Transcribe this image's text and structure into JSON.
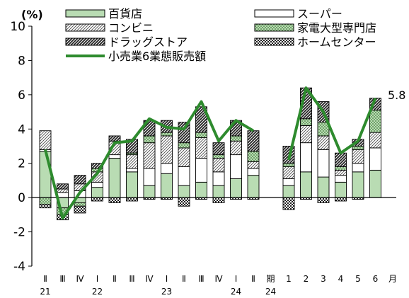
{
  "chart_data": {
    "type": "bar",
    "stacked": true,
    "unit_label": "(%)",
    "ylim": [
      -4,
      10
    ],
    "yticks": [
      10,
      8,
      6,
      4,
      2,
      0,
      -2,
      -4
    ],
    "x_tick_labels": [
      "Ⅱ",
      "Ⅲ",
      "Ⅳ",
      "Ⅰ",
      "Ⅱ",
      "Ⅲ",
      "Ⅳ",
      "Ⅰ",
      "Ⅱ",
      "Ⅲ",
      "Ⅳ",
      "Ⅰ",
      "Ⅱ",
      "期",
      "1",
      "2",
      "3",
      "4",
      "5",
      "6",
      "月"
    ],
    "year_labels": [
      {
        "after_index": 0,
        "label": "21"
      },
      {
        "after_index": 3,
        "label": "22"
      },
      {
        "after_index": 7,
        "label": "23"
      },
      {
        "after_index": 11,
        "label": "24"
      },
      {
        "after_index": 13,
        "label": "24"
      }
    ],
    "categories": [
      "2021 II",
      "2021 III",
      "2021 IV",
      "2022 I",
      "2022 II",
      "2022 III",
      "2022 IV",
      "2023 I",
      "2023 II",
      "2023 III",
      "2023 IV",
      "2024 I",
      "2024 II",
      "2024-1",
      "2024-2",
      "2024-3",
      "2024-4",
      "2024-5",
      "2024-6"
    ],
    "series": [
      {
        "name": "百貨店",
        "color": "#b9dcb3",
        "pattern": "solid",
        "values": [
          2.7,
          -0.6,
          -0.3,
          0.6,
          2.3,
          1.5,
          0.7,
          1.4,
          0.7,
          0.9,
          0.7,
          1.1,
          1.3,
          0.7,
          1.5,
          1.2,
          0.9,
          1.5,
          1.6
        ]
      },
      {
        "name": "スーパー",
        "color": "#ffffff",
        "pattern": "white",
        "values": [
          0.1,
          0.3,
          0.4,
          0.3,
          0.2,
          0.2,
          1.0,
          0.6,
          1.1,
          1.4,
          0.8,
          1.4,
          0.4,
          0.4,
          1.7,
          1.6,
          0.4,
          0.5,
          1.3
        ]
      },
      {
        "name": "コンビニ",
        "color": "#ffffff",
        "pattern": "hatch-light",
        "values": [
          1.1,
          0.2,
          0.4,
          0.6,
          0.8,
          0.8,
          1.5,
          1.6,
          1.1,
          1.2,
          0.8,
          0.8,
          0.4,
          0.7,
          1.0,
          0.8,
          0.3,
          0.8,
          0.9
        ]
      },
      {
        "name": "家電大型専門店",
        "color": "#6aa563",
        "pattern": "dots",
        "values": [
          -0.4,
          -0.4,
          -0.2,
          0.2,
          0.0,
          0.1,
          0.4,
          0.2,
          0.3,
          0.3,
          0.2,
          0.3,
          0.6,
          0.2,
          0.4,
          0.8,
          0.2,
          0.2,
          1.3
        ]
      },
      {
        "name": "ドラッグストア",
        "color": "#555555",
        "pattern": "hatch-dark",
        "values": [
          0.0,
          0.3,
          0.5,
          0.3,
          0.3,
          0.8,
          0.9,
          0.7,
          1.2,
          1.5,
          0.7,
          0.9,
          1.2,
          1.0,
          1.8,
          1.2,
          0.8,
          0.4,
          0.7
        ]
      },
      {
        "name": "ホームセンター",
        "color": "#222222",
        "pattern": "checker",
        "values": [
          -0.2,
          -0.3,
          -0.4,
          -0.2,
          -0.3,
          -0.2,
          -0.1,
          -0.1,
          -0.5,
          -0.1,
          -0.3,
          -0.1,
          -0.1,
          -0.7,
          -0.1,
          -0.3,
          -0.2,
          -0.1,
          0.0
        ]
      },
      {
        "name": "小売業6業態販売額",
        "type": "line",
        "color": "#2e8b2e",
        "values": [
          2.8,
          -1.2,
          0.3,
          1.4,
          3.2,
          3.3,
          4.6,
          4.1,
          4.0,
          5.6,
          3.3,
          4.5,
          3.9,
          2.2,
          6.4,
          5.0,
          2.6,
          3.3,
          5.8
        ]
      }
    ],
    "annotation": {
      "index": 18,
      "text": "5.8"
    },
    "legend_placement": "top",
    "grid": false
  }
}
